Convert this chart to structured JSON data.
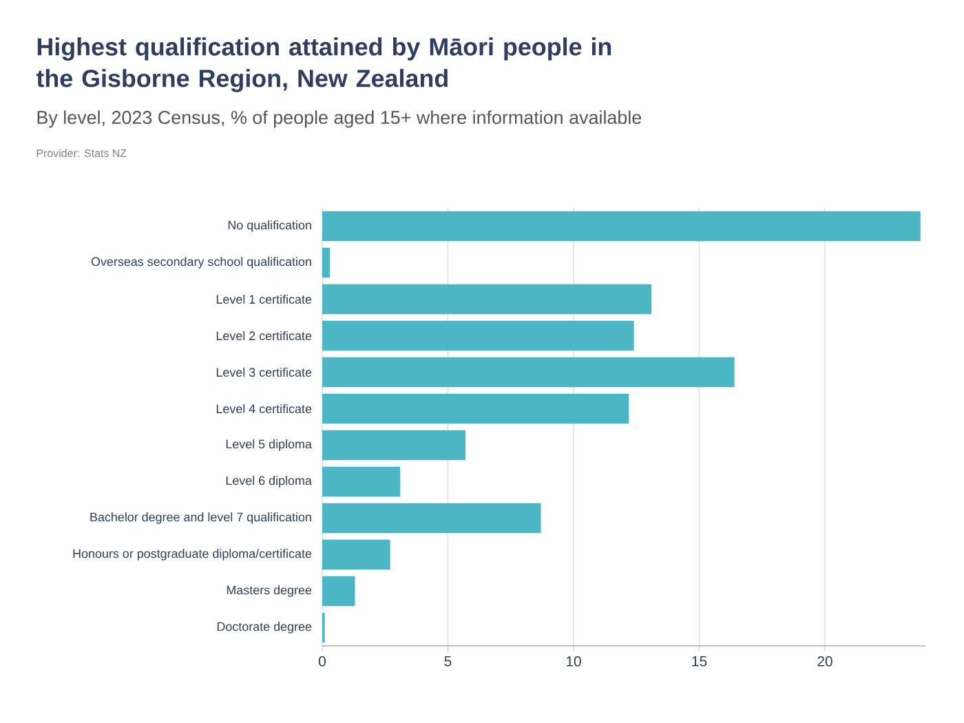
{
  "chart_data": {
    "type": "bar",
    "orientation": "horizontal",
    "title": "Highest qualification attained by Māori people in the Gisborne Region, New Zealand",
    "subtitle": "By level, 2023 Census, % of people aged 15+ where information available",
    "annotations": [
      "Provider: Stats NZ"
    ],
    "categories": [
      "No qualification",
      "Overseas secondary school qualification",
      "Level 1 certificate",
      "Level 2 certificate",
      "Level 3 certificate",
      "Level 4 certificate",
      "Level 5 diploma",
      "Level 6 diploma",
      "Bachelor degree and level 7 qualification",
      "Honours or postgraduate diploma/certificate",
      "Masters degree",
      "Doctorate degree"
    ],
    "values": [
      23.8,
      0.3,
      13.1,
      12.4,
      16.4,
      12.2,
      5.7,
      3.1,
      8.7,
      2.7,
      1.3,
      0.1
    ],
    "color": "#4db6c4",
    "xlim": [
      0,
      24
    ],
    "xticks": [
      0,
      5,
      10,
      15,
      20
    ],
    "grid": "x"
  }
}
